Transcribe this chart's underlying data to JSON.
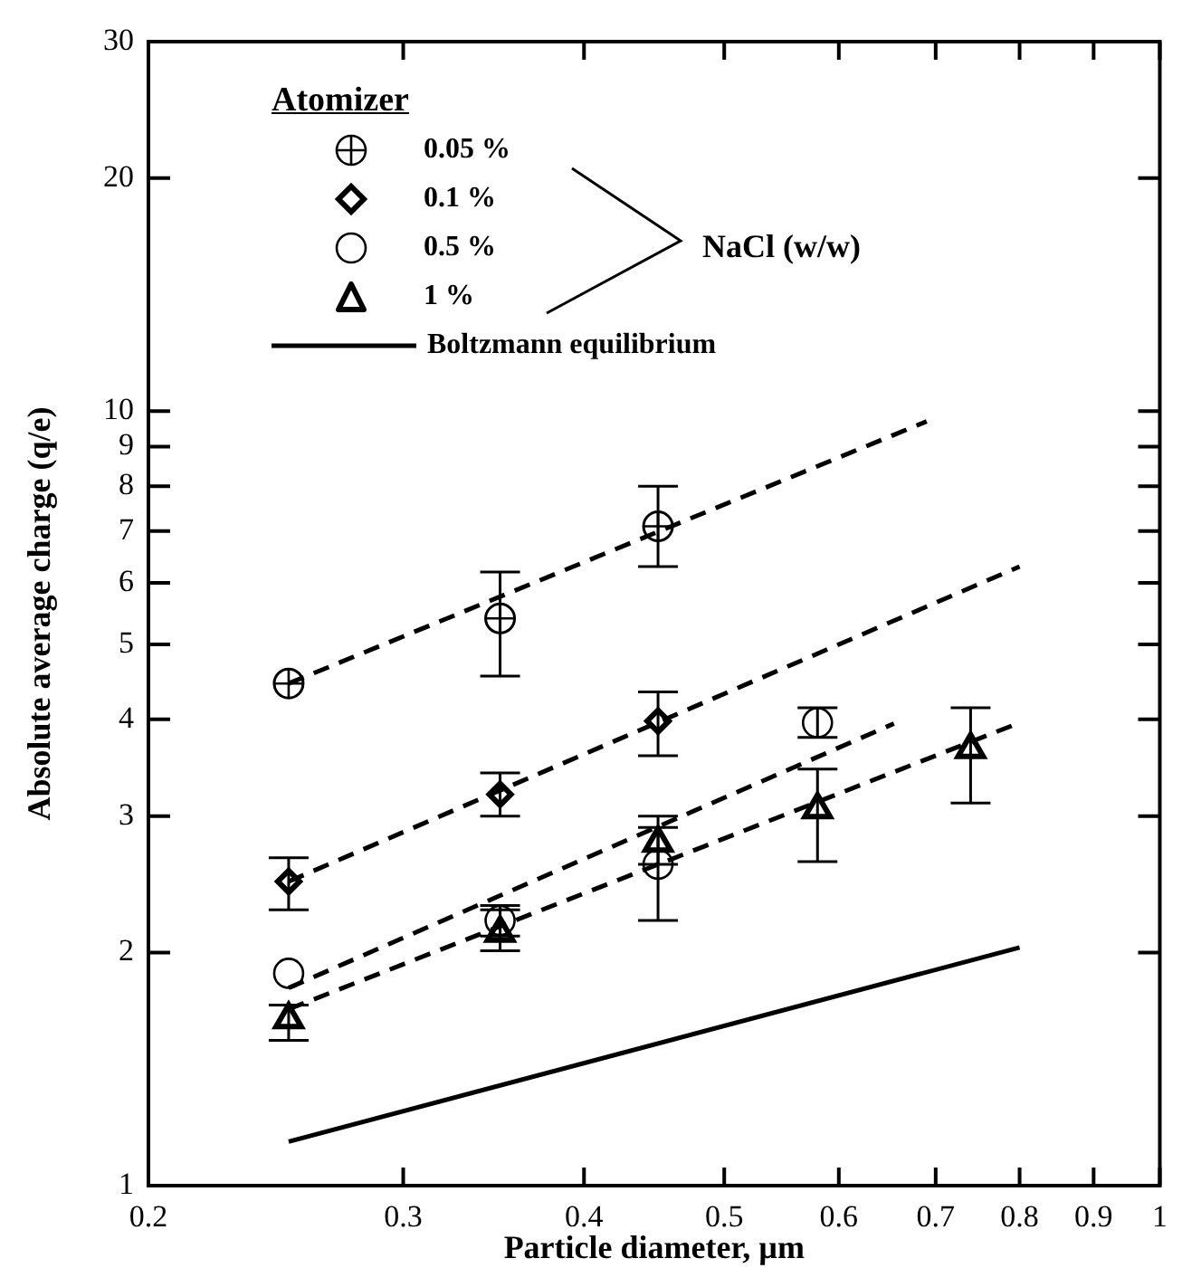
{
  "chart_data": {
    "type": "scatter",
    "xlabel": "Particle diameter, µm",
    "ylabel": "Absolute average charge (q/e)",
    "legend_title": "Atomizer",
    "legend": "top left",
    "grid": false,
    "log": "xy",
    "annotations": [
      "NaCl (w/w)"
    ],
    "xlim": [
      0.2,
      1
    ],
    "ylim": [
      1,
      30
    ],
    "xticks": [
      0.2,
      0.3,
      0.4,
      0.5,
      0.6,
      0.7,
      0.8,
      0.9,
      1
    ],
    "yticks": [
      1,
      2,
      3,
      4,
      5,
      6,
      7,
      8,
      9,
      10,
      20,
      30
    ],
    "series": [
      {
        "name": "0.05 %",
        "type": "scatter",
        "color": "#000000",
        "x": [
          0.25,
          0.35,
          0.45
        ],
        "values": [
          4.45,
          5.4,
          7.1
        ],
        "errors": [
          null,
          [
            4.55,
            6.2
          ],
          [
            6.3,
            8.0
          ]
        ]
      },
      {
        "name": "0.1 %",
        "type": "scatter",
        "marker": "diamond",
        "color": "#000000",
        "x": [
          0.25,
          0.35,
          0.45
        ],
        "values": [
          2.47,
          3.2,
          3.98
        ],
        "errors": [
          [
            2.27,
            2.65
          ],
          [
            3.0,
            3.41
          ],
          [
            3.59,
            4.34
          ]
        ]
      },
      {
        "name": "0.5 %",
        "type": "scatter",
        "marker": "circle",
        "color": "#000000",
        "x": [
          0.25,
          0.35,
          0.45,
          0.58
        ],
        "values": [
          1.88,
          2.2,
          2.6,
          3.96
        ],
        "errors": [
          null,
          [
            2.1,
            2.3
          ],
          [
            2.2,
            3.0
          ],
          [
            3.79,
            4.14
          ]
        ]
      },
      {
        "name": "1 %",
        "type": "scatter",
        "marker": "triangle",
        "color": "#000000",
        "x": [
          0.25,
          0.35,
          0.45,
          0.58,
          0.74
        ],
        "values": [
          1.64,
          2.12,
          2.77,
          3.06,
          3.66
        ],
        "errors": [
          [
            1.54,
            1.71
          ],
          [
            2.01,
            2.27
          ],
          [
            2.6,
            2.9
          ],
          [
            2.62,
            3.45
          ],
          [
            3.12,
            4.14
          ]
        ]
      },
      {
        "type": "line",
        "line_style": "dashed",
        "color": "#000000",
        "x": [
          0.25,
          0.69
        ],
        "values": [
          4.45,
          9.7
        ]
      },
      {
        "type": "line",
        "line_style": "dashed",
        "color": "#000000",
        "x": [
          0.25,
          0.8
        ],
        "values": [
          2.47,
          6.3
        ]
      },
      {
        "type": "line",
        "line_style": "dashed",
        "color": "#000000",
        "x": [
          0.25,
          0.655
        ],
        "values": [
          1.8,
          3.95
        ]
      },
      {
        "type": "line",
        "line_style": "dashed",
        "color": "#000000",
        "x": [
          0.25,
          0.8
        ],
        "values": [
          1.69,
          3.96
        ]
      },
      {
        "name": "Boltzmann equilibrium",
        "type": "line",
        "line_style": "solid",
        "color": "#000000",
        "x": [
          0.25,
          0.8
        ],
        "values": [
          1.14,
          2.03
        ]
      }
    ]
  }
}
